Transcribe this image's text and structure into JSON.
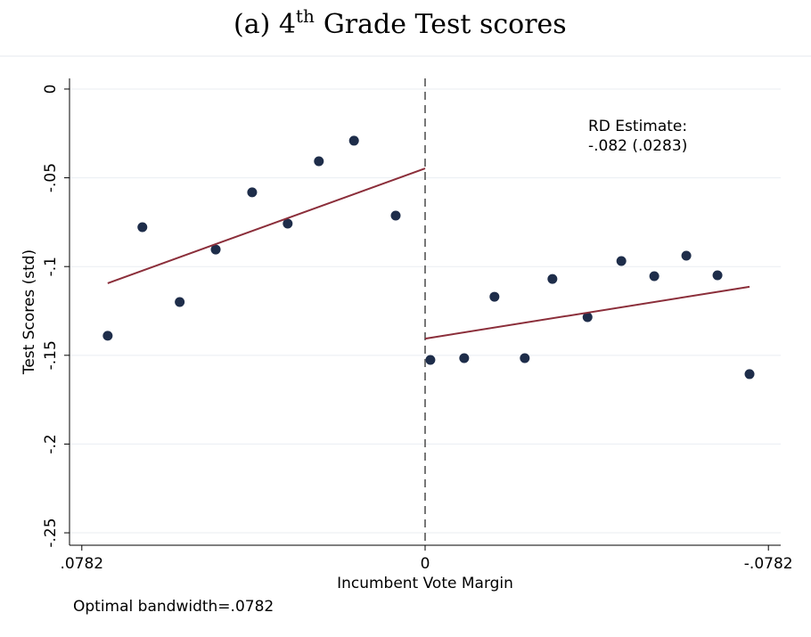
{
  "chart_data": {
    "type": "scatter",
    "title": {
      "text": "(a) 4",
      "superscript": "th",
      "rest": "Grade Test scores"
    },
    "xlabel": "Incumbent Vote Margin",
    "ylabel": "Test Scores (std)",
    "annotation": [
      "RD Estimate:",
      "-.082 (.0283)"
    ],
    "note": "Optimal bandwidth=.0782",
    "xlim": [
      0.081,
      -0.081
    ],
    "xticks": [
      {
        "value": 0.0782,
        "label": ".0782"
      },
      0,
      {
        "value": -0.0782,
        "label": "-.0782"
      }
    ],
    "ylim": [
      -0.257,
      0.006
    ],
    "yticks": [
      0,
      {
        "value": -0.05,
        "label": "-.05"
      },
      {
        "value": -0.1,
        "label": "-.1"
      },
      {
        "value": -0.15,
        "label": "-.15"
      },
      {
        "value": -0.2,
        "label": "-.2"
      },
      {
        "value": -0.25,
        "label": "-.25"
      }
    ],
    "grid": true,
    "series": [
      {
        "color": "#1e2d4a",
        "x": [
          0.0723,
          0.0644,
          0.0559,
          0.0477,
          0.0394,
          0.0313,
          0.0242,
          0.0162,
          0.0067,
          -0.0012,
          -0.0089,
          -0.0158,
          -0.0227,
          -0.029,
          -0.037,
          -0.0447,
          -0.0522,
          -0.0595,
          -0.0666,
          -0.0739
        ],
        "values": [
          -0.139,
          -0.0778,
          -0.12,
          -0.0904,
          -0.0582,
          -0.0758,
          -0.0407,
          -0.0291,
          -0.0713,
          -0.1526,
          -0.1516,
          -0.117,
          -0.1516,
          -0.107,
          -0.1285,
          -0.0969,
          -0.1054,
          -0.0939,
          -0.1049,
          -0.1606
        ]
      },
      {
        "type": "line",
        "color": "#8b2e3a",
        "x": [
          0.0723,
          0
        ],
        "values": [
          -0.1094,
          -0.0447
        ]
      },
      {
        "type": "line",
        "color": "#8b2e3a",
        "x": [
          0,
          -0.0739
        ],
        "values": [
          -0.1406,
          -0.1114
        ]
      }
    ]
  }
}
